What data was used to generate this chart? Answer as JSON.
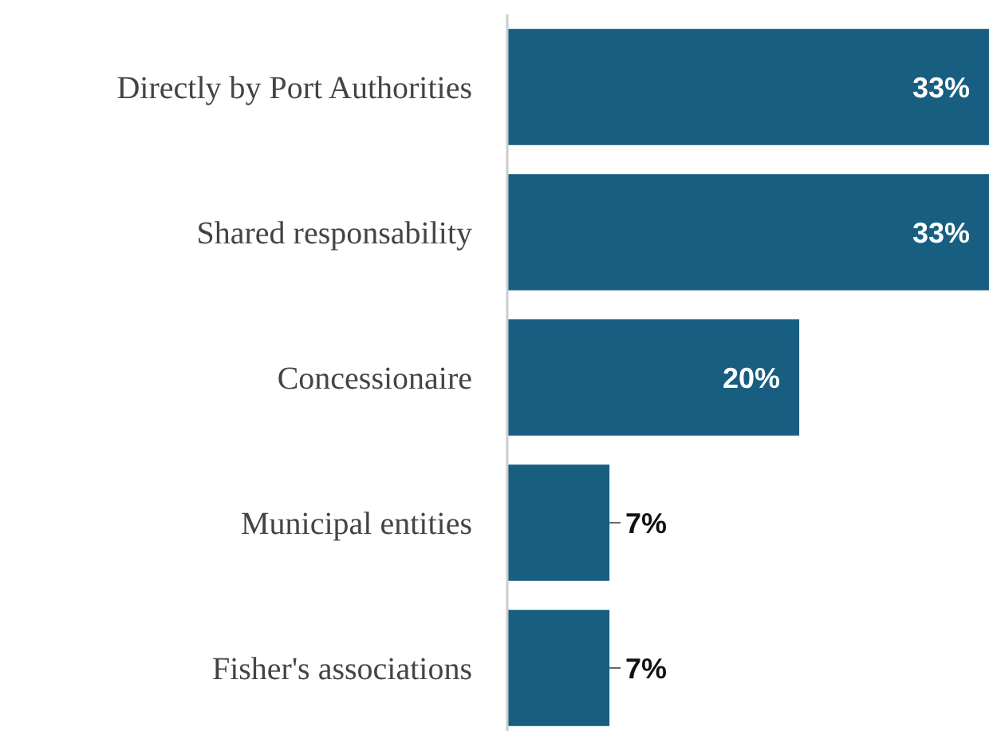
{
  "chart_data": {
    "type": "bar",
    "orientation": "horizontal",
    "categories": [
      "Directly by Port Authorities",
      "Shared responsability",
      "Concessionaire",
      "Municipal entities",
      "Fisher's associations"
    ],
    "values": [
      33,
      33,
      20,
      7,
      7
    ],
    "value_labels": [
      "33%",
      "33%",
      "20%",
      "7%",
      "7%"
    ],
    "color": "#175e81",
    "xlim": [
      0,
      33
    ],
    "tick_labels": "y"
  }
}
